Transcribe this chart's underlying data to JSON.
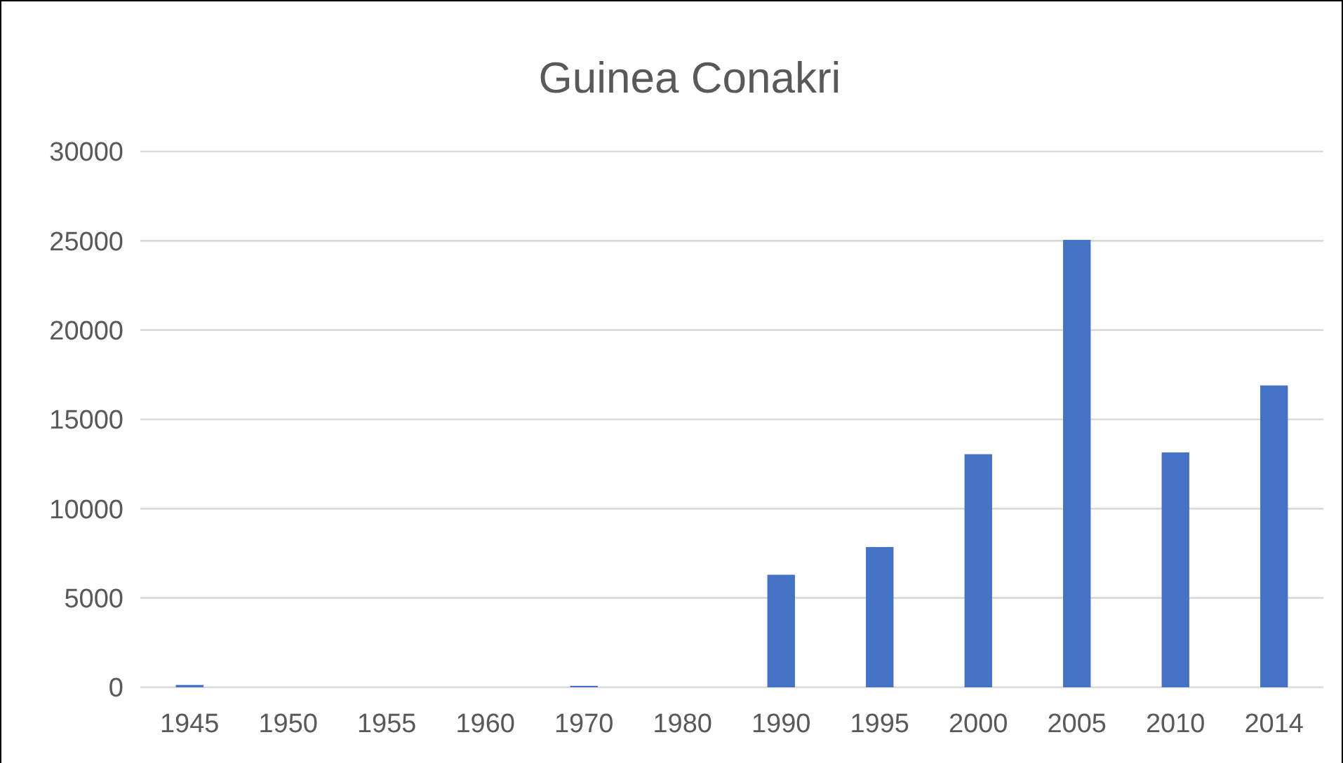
{
  "chart_data": {
    "type": "bar",
    "title": "Guinea Conakri",
    "categories": [
      "1945",
      "1950",
      "1955",
      "1960",
      "1970",
      "1980",
      "1990",
      "1995",
      "2000",
      "2005",
      "2010",
      "2014"
    ],
    "values": [
      130,
      0,
      0,
      0,
      80,
      0,
      6300,
      7850,
      13050,
      25050,
      13150,
      16900
    ],
    "color": "#4472c4",
    "ylim": [
      0,
      30000
    ],
    "yticks": [
      0,
      5000,
      10000,
      15000,
      20000,
      25000,
      30000
    ],
    "grid": "y"
  }
}
